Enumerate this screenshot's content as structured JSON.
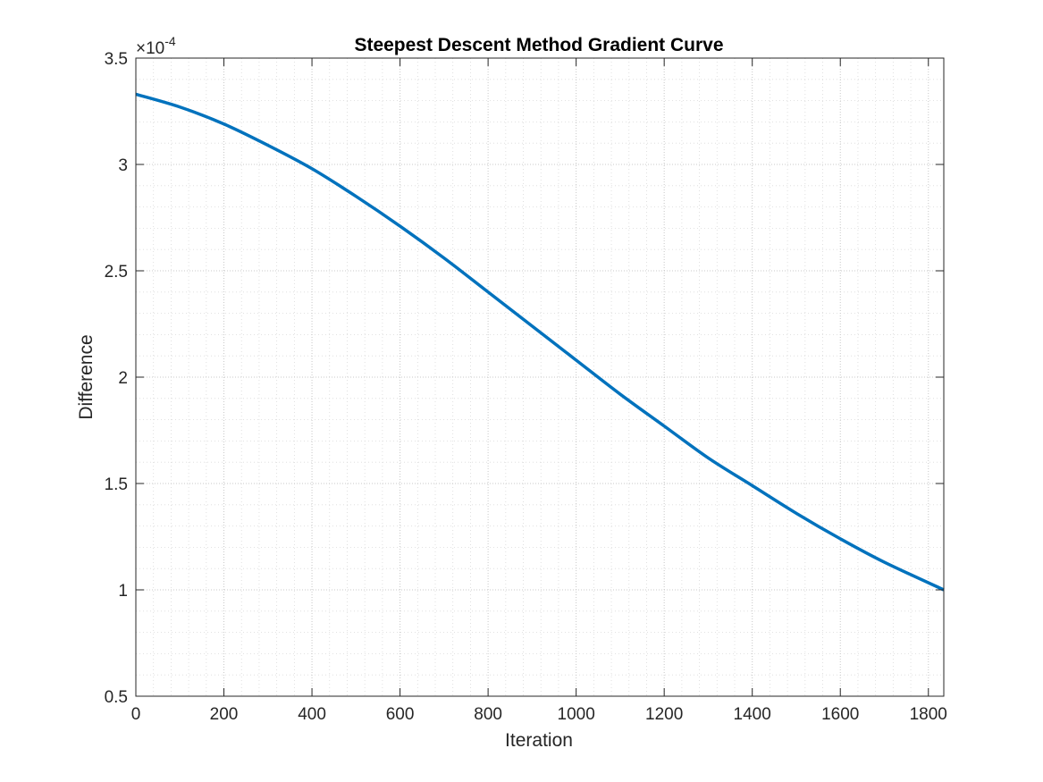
{
  "chart_data": {
    "type": "line",
    "title": "Steepest Descent Method Gradient Curve",
    "xlabel": "Iteration",
    "ylabel": "Difference",
    "xlim": [
      0,
      1835
    ],
    "ylim": [
      0.5,
      3.5
    ],
    "y_exponent_label": {
      "base": "×10",
      "power": "-4"
    },
    "x_ticks": [
      0,
      200,
      400,
      600,
      800,
      1000,
      1200,
      1400,
      1600,
      1800
    ],
    "x_tick_labels": [
      "0",
      "200",
      "400",
      "600",
      "800",
      "1000",
      "1200",
      "1400",
      "1600",
      "1800"
    ],
    "y_ticks": [
      0.5,
      1,
      1.5,
      2,
      2.5,
      3,
      3.5
    ],
    "y_tick_labels": [
      "0.5",
      "1",
      "1.5",
      "2",
      "2.5",
      "3",
      "3.5"
    ],
    "grid": true,
    "minor_grid": true,
    "series": [
      {
        "color": "#0072BD",
        "x": [
          0,
          100,
          200,
          300,
          400,
          500,
          600,
          700,
          800,
          900,
          1000,
          1100,
          1200,
          1300,
          1400,
          1500,
          1600,
          1700,
          1835
        ],
        "y": [
          3.33,
          3.27,
          3.19,
          3.09,
          2.98,
          2.85,
          2.71,
          2.56,
          2.4,
          2.24,
          2.08,
          1.92,
          1.77,
          1.62,
          1.49,
          1.36,
          1.24,
          1.13,
          1.0
        ]
      }
    ]
  }
}
